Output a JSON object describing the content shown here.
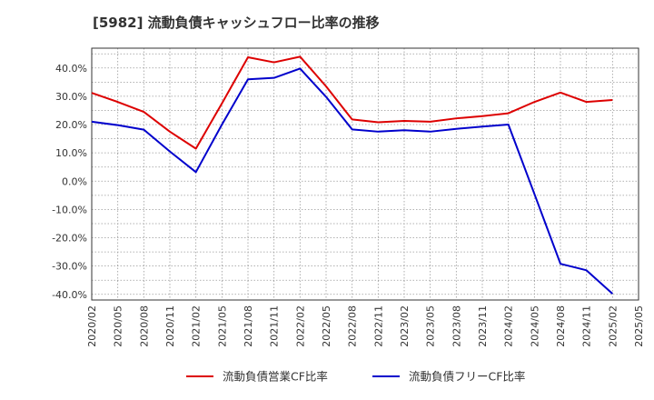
{
  "chart_data": {
    "type": "line",
    "title": "[5982]  流動負債キャッシュフロー比率の推移",
    "xlabel": "",
    "ylabel": "",
    "ylim": [
      -42,
      47
    ],
    "yticks": [
      40,
      30,
      20,
      10,
      0,
      -10,
      -20,
      -30,
      -40
    ],
    "ytick_labels": [
      "40.0%",
      "30.0%",
      "20.0%",
      "10.0%",
      "0.0%",
      "-10.0%",
      "-20.0%",
      "-30.0%",
      "-40.0%"
    ],
    "categories": [
      "2020/02",
      "2020/05",
      "2020/08",
      "2020/11",
      "2021/02",
      "2021/05",
      "2021/08",
      "2021/11",
      "2022/02",
      "2022/05",
      "2022/08",
      "2022/11",
      "2023/02",
      "2023/05",
      "2023/08",
      "2023/11",
      "2024/02",
      "2024/05",
      "2024/08",
      "2024/11",
      "2025/02",
      "2025/05"
    ],
    "grid": true,
    "legend_position": "bottom",
    "series": [
      {
        "name": "流動負債営業CF比率",
        "color": "#dd0000",
        "values": [
          31.2,
          28.0,
          24.5,
          17.5,
          11.5,
          27.5,
          43.8,
          42.0,
          44.0,
          33.5,
          21.8,
          20.8,
          21.3,
          21.0,
          22.2,
          23.0,
          24.0,
          28.0,
          31.3,
          28.0,
          28.7,
          null
        ]
      },
      {
        "name": "流動負債フリーCF比率",
        "color": "#0000cc",
        "values": [
          21.0,
          19.8,
          18.2,
          10.5,
          3.2,
          20.0,
          36.0,
          36.5,
          39.8,
          29.8,
          18.3,
          17.5,
          18.0,
          17.5,
          18.5,
          19.3,
          20.0,
          -4.5,
          -29.2,
          -31.5,
          -39.8,
          null
        ]
      }
    ]
  }
}
